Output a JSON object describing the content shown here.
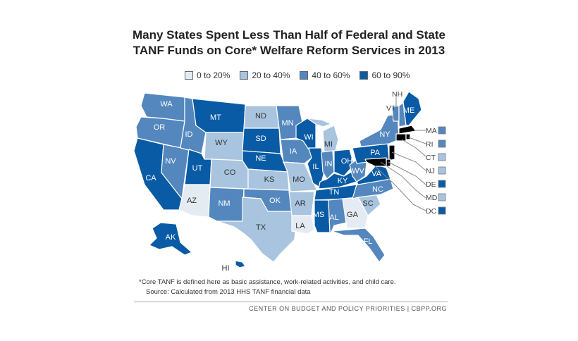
{
  "title_line1": "Many States Spent Less Than Half of Federal and State",
  "title_line2": "TANF Funds on Core* Welfare Reform Services in 2013",
  "legend": [
    {
      "label": "0 to 20%",
      "color": "#e4ebf3"
    },
    {
      "label": "20 to 40%",
      "color": "#a9c4df"
    },
    {
      "label": "40 to 60%",
      "color": "#5387be"
    },
    {
      "label": "60 to 90%",
      "color": "#0a5ba5"
    }
  ],
  "states": {
    "WA": 2,
    "OR": 2,
    "CA": 3,
    "NV": 2,
    "ID": 2,
    "MT": 3,
    "WY": 1,
    "UT": 3,
    "AZ": 0,
    "CO": 1,
    "NM": 2,
    "ND": 1,
    "SD": 3,
    "NE": 3,
    "KS": 1,
    "OK": 2,
    "TX": 1,
    "MN": 2,
    "IA": 2,
    "MO": 1,
    "AR": 1,
    "LA": 0,
    "WI": 3,
    "IL": 3,
    "MI": 1,
    "IN": 2,
    "OH": 3,
    "KY": 3,
    "TN": 3,
    "MS": 3,
    "AL": 2,
    "GA": 0,
    "FL": 2,
    "SC": 1,
    "NC": 2,
    "VA": 3,
    "WV": 2,
    "PA": 3,
    "NY": 2,
    "VT": 2,
    "NH": 2,
    "ME": 3,
    "AK": 3,
    "HI": 3
  },
  "small_states": [
    {
      "label": "MA",
      "level": 2
    },
    {
      "label": "RI",
      "level": 2
    },
    {
      "label": "CT",
      "level": 1
    },
    {
      "label": "NJ",
      "level": 1
    },
    {
      "label": "DE",
      "level": 3
    },
    {
      "label": "MD",
      "level": 1
    },
    {
      "label": "DC",
      "level": 3
    }
  ],
  "top_labels": {
    "nh": "NH",
    "vt": "VT"
  },
  "footnote1": "*Core TANF is defined here as basic assistance, work-related activities, and child care.",
  "footnote2": "Source: Calculated from 2013 HHS TANF financial data",
  "credit": "CENTER ON BUDGET AND POLICY PRIORITIES | CBPP.ORG"
}
